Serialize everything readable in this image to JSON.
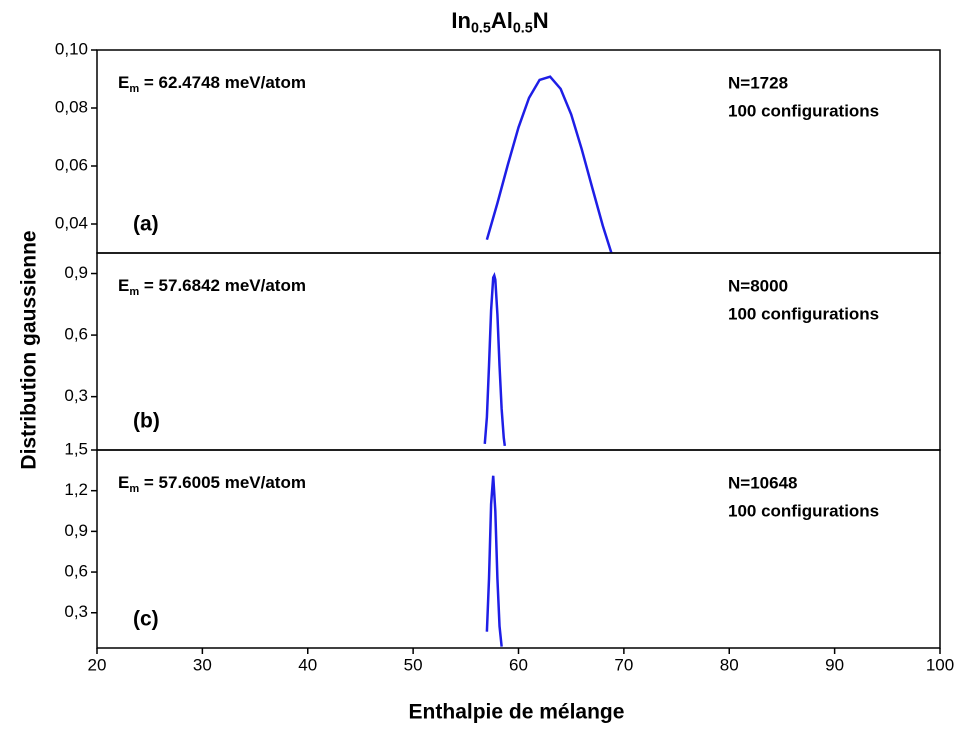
{
  "chart_data": [
    {
      "type": "line",
      "title": [
        "In",
        "0.5",
        "Al",
        "0.5",
        "N"
      ],
      "ylabel": "Distribution gaussienne",
      "label": "(a)",
      "annotation": [
        "E",
        "m",
        " = 62.4748 meV/atom"
      ],
      "notes": [
        "N=1728",
        "100 configurations"
      ],
      "x": [
        57,
        58,
        59,
        60,
        61,
        62,
        63,
        64,
        65,
        66,
        67,
        68,
        69
      ],
      "values": [
        0.0346,
        0.0472,
        0.0606,
        0.0733,
        0.0835,
        0.0897,
        0.0908,
        0.0866,
        0.0778,
        0.0658,
        0.0525,
        0.0394,
        0.0279
      ],
      "color": "#1e1ee6",
      "xlim": [
        20,
        100
      ],
      "ylim": [
        0.03,
        0.1
      ],
      "yticks": [
        {
          "value": 0.04,
          "label": "0,04"
        },
        {
          "value": 0.06,
          "label": "0,06"
        },
        {
          "value": 0.08,
          "label": "0,08"
        },
        {
          "value": 0.1,
          "label": "0,10"
        }
      ]
    },
    {
      "type": "line",
      "label": "(b)",
      "annotation": [
        "E",
        "m",
        " = 57.6842 meV/atom"
      ],
      "notes": [
        "N=8000",
        "100 configurations"
      ],
      "x": [
        56.8,
        57.0,
        57.2,
        57.4,
        57.6,
        57.7,
        57.8,
        58.0,
        58.2,
        58.4,
        58.6,
        58.7
      ],
      "values": [
        0.07,
        0.2,
        0.45,
        0.72,
        0.88,
        0.89,
        0.87,
        0.7,
        0.45,
        0.24,
        0.1,
        0.06
      ],
      "color": "#1e1ee6",
      "xlim": [
        20,
        100
      ],
      "ylim": [
        0.04,
        1.0
      ],
      "yticks": [
        {
          "value": 0.3,
          "label": "0,3"
        },
        {
          "value": 0.6,
          "label": "0,6"
        },
        {
          "value": 0.9,
          "label": "0,9"
        }
      ]
    },
    {
      "type": "line",
      "xlabel": "Enthalpie de mélange",
      "label": "(c)",
      "annotation": [
        "E",
        "m",
        " = 57.6005 meV/atom"
      ],
      "notes": [
        "N=10648",
        "100 configurations"
      ],
      "x": [
        57.0,
        57.2,
        57.4,
        57.6,
        57.8,
        58.0,
        58.2,
        58.4
      ],
      "values": [
        0.16,
        0.55,
        1.1,
        1.31,
        1.05,
        0.55,
        0.2,
        0.05
      ],
      "color": "#1e1ee6",
      "xlim": [
        20,
        100
      ],
      "ylim": [
        0.04,
        1.5
      ],
      "yticks": [
        {
          "value": 0.3,
          "label": "0,3"
        },
        {
          "value": 0.6,
          "label": "0,6"
        },
        {
          "value": 0.9,
          "label": "0,9"
        },
        {
          "value": 1.2,
          "label": "1,2"
        },
        {
          "value": 1.5,
          "label": "1,5"
        }
      ],
      "xticks": [
        20,
        30,
        40,
        50,
        60,
        70,
        80,
        90,
        100
      ]
    }
  ]
}
